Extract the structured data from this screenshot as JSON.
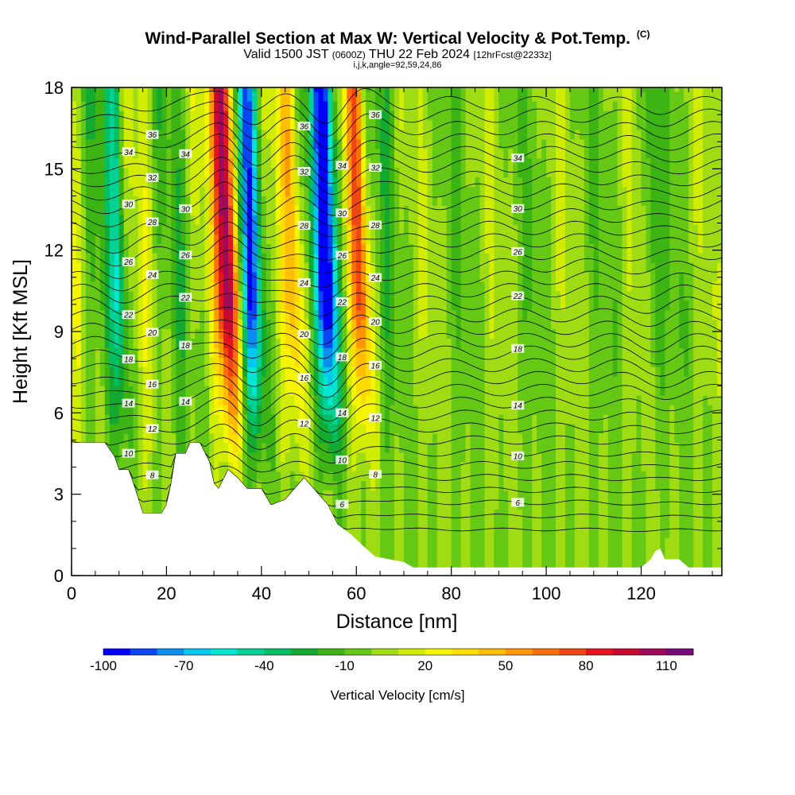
{
  "title": {
    "main": "Wind-Parallel Section at Max W: Vertical Velocity & Pot.Temp.",
    "units": "(C)",
    "valid": "Valid 1500 JST",
    "zulu": "(0600Z)",
    "date": "THU 22 Feb 2024",
    "fcst": "[12hrFcst@2233z]",
    "indices": "i,j,k,angle=92,59,24,86"
  },
  "chart_data": {
    "type": "heatmap",
    "xlabel": "Distance [nm]",
    "ylabel": "Height [Kft MSL]",
    "xlim": [
      0,
      137
    ],
    "ylim": [
      0,
      18
    ],
    "x_ticks": [
      "0",
      "20",
      "40",
      "60",
      "80",
      "100",
      "120"
    ],
    "y_ticks": [
      "0",
      "3",
      "6",
      "9",
      "12",
      "15",
      "18"
    ],
    "colorbar": {
      "title": "Vertical Velocity [cm/s]",
      "tick_labels": [
        "-100",
        "-70",
        "-40",
        "-10",
        "20",
        "50",
        "80",
        "110"
      ],
      "levels": [
        -100,
        -90,
        -80,
        -70,
        -60,
        -50,
        -40,
        -30,
        -20,
        -10,
        0,
        10,
        20,
        30,
        40,
        50,
        60,
        70,
        80,
        90,
        100,
        110,
        120
      ],
      "colors": [
        "#0000ff",
        "#0a46f5",
        "#0a8cf0",
        "#00c8f0",
        "#00e6d2",
        "#00d296",
        "#00be64",
        "#14aa32",
        "#3cb414",
        "#64c814",
        "#a0dc14",
        "#d2ec00",
        "#f5f500",
        "#ffdc00",
        "#ffbe00",
        "#ff9600",
        "#ff6e0a",
        "#f04614",
        "#e6141e",
        "#c80a32",
        "#a00a5a",
        "#780a78"
      ]
    },
    "updrafts": [
      {
        "x": 33,
        "peak_cm_s": 110
      },
      {
        "x": 47,
        "peak_cm_s": 40
      },
      {
        "x": 61,
        "peak_cm_s": 60
      }
    ],
    "downdrafts": [
      {
        "x": 10,
        "peak_cm_s": -40
      },
      {
        "x": 38,
        "peak_cm_s": -70
      },
      {
        "x": 54,
        "peak_cm_s": -100
      },
      {
        "x": 123,
        "peak_cm_s": -30
      }
    ],
    "isentropes": {
      "labels": [
        "6",
        "8",
        "10",
        "12",
        "14",
        "16",
        "18",
        "20",
        "22",
        "24",
        "26",
        "28",
        "30",
        "32",
        "34",
        "36"
      ]
    }
  }
}
